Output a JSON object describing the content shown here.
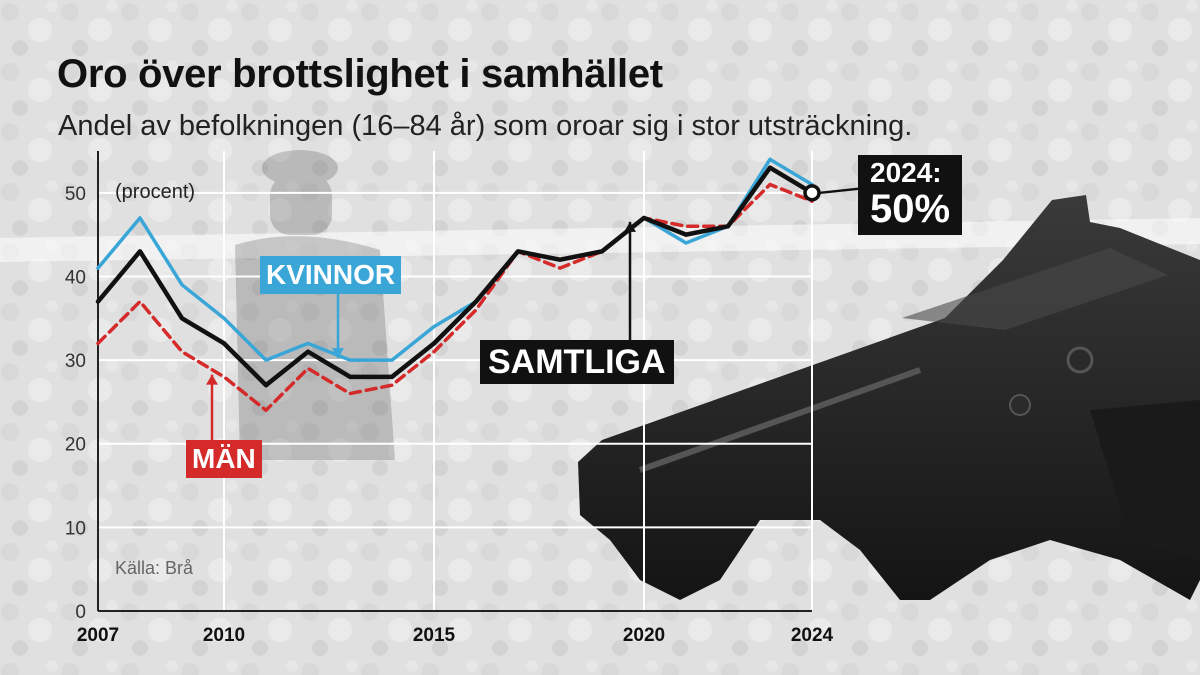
{
  "title": "Oro över brottslighet i samhället",
  "subtitle": "Andel av befolkningen (16–84 år) som oroar sig i stor utsträckning.",
  "unit_label": "(procent)",
  "source": "Källa: Brå",
  "callout": {
    "year_label": "2024:",
    "value_label": "50%"
  },
  "chart_data": {
    "type": "line",
    "title": "Oro över brottslighet i samhället",
    "subtitle": "Andel av befolkningen (16–84 år) som oroar sig i stor utsträckning.",
    "ylabel": "(procent)",
    "xlabel": "",
    "x": [
      2007,
      2008,
      2009,
      2010,
      2011,
      2012,
      2013,
      2014,
      2015,
      2016,
      2017,
      2018,
      2019,
      2020,
      2021,
      2022,
      2023,
      2024
    ],
    "xlim": [
      2007,
      2024
    ],
    "ylim": [
      0,
      55
    ],
    "x_ticks": [
      2007,
      2010,
      2015,
      2020,
      2024
    ],
    "y_ticks": [
      0,
      10,
      20,
      30,
      40,
      50
    ],
    "grid": true,
    "series": [
      {
        "name": "KVINNOR",
        "color": "#3aa6d8",
        "style": "solid",
        "values": [
          41,
          47,
          39,
          35,
          30,
          32,
          30,
          30,
          34,
          37,
          43,
          42,
          43,
          47,
          44,
          46,
          54,
          51
        ]
      },
      {
        "name": "MÄN",
        "color": "#d42a2a",
        "style": "dashed",
        "values": [
          32,
          37,
          31,
          28,
          24,
          29,
          26,
          27,
          31,
          36,
          43,
          41,
          43,
          47,
          46,
          46,
          51,
          49
        ]
      },
      {
        "name": "SAMTLIGA",
        "color": "#111111",
        "style": "solid",
        "values": [
          37,
          43,
          35,
          32,
          27,
          31,
          28,
          28,
          32,
          37,
          43,
          42,
          43,
          47,
          45,
          46,
          53,
          50
        ]
      }
    ]
  }
}
